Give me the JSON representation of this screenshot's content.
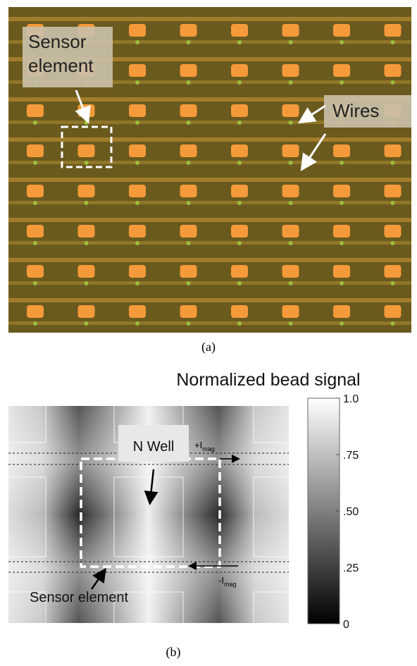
{
  "panel_a": {
    "labels": {
      "sensor_element": "Sensor element",
      "wires": "Wires"
    },
    "caption": "(a)"
  },
  "panel_b": {
    "title": "Normalized bead signal",
    "labels": {
      "n_well": "N Well",
      "sensor_element": "Sensor element",
      "plus_current": {
        "symbol": "+I",
        "subscript": "mag"
      },
      "minus_current": {
        "symbol": "-I",
        "subscript": "mag"
      }
    },
    "colorbar": {
      "lim": [
        0,
        1
      ],
      "ticks": [
        {
          "value": 1,
          "label": "1.0"
        },
        {
          "value": 0.75,
          "label": ".75"
        },
        {
          "value": 0.5,
          "label": ".50"
        },
        {
          "value": 0.25,
          "label": ".25"
        },
        0
      ]
    },
    "caption": "(b)"
  }
}
